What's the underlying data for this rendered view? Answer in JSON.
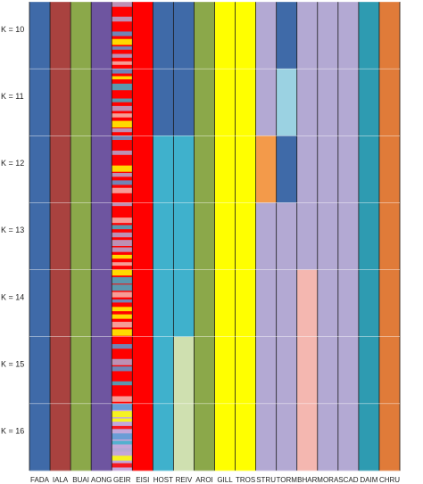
{
  "chart_data": {
    "type": "bar",
    "subtype": "stacked-admixture-structure-plot",
    "k_labels": [
      "K = 10",
      "K = 11",
      "K = 12",
      "K = 13",
      "K = 14",
      "K = 15",
      "K = 16"
    ],
    "populations": [
      "FADA",
      "IALA",
      "BUAI",
      "AONG",
      "GEIR",
      "EISI",
      "HOST",
      "REIV",
      "AROI",
      "GILL",
      "TROS",
      "STRU",
      "TORM",
      "BHAR",
      "MORA",
      "SCAD",
      "DAIM",
      "CHRU"
    ],
    "palette": {
      "dark_blue": "#3f6aa8",
      "maroon": "#a9423f",
      "olive_green": "#8ba84a",
      "purple": "#6e55a0",
      "red": "#ff0000",
      "cyan": "#3fb1cc",
      "yellow": "#ffff00",
      "lavender": "#b3a9d3",
      "orange": "#f39a4a",
      "teal": "#2e9bb1",
      "burnt_orange": "#e07b39",
      "light_blue": "#9bd2e2",
      "pink": "#f4b7b0",
      "pale_green": "#cfe0b0",
      "light_purple": "#c4a7d9",
      "sky_blue": "#5b9bd5"
    },
    "cluster_assignment": [
      [
        "dark_blue",
        "maroon",
        "olive_green",
        "purple",
        "red",
        "red",
        "dark_blue",
        "dark_blue",
        "olive_green",
        "yellow",
        "yellow",
        "lavender",
        "dark_blue",
        "lavender",
        "lavender",
        "lavender",
        "teal",
        "burnt_orange"
      ],
      [
        "dark_blue",
        "maroon",
        "olive_green",
        "purple",
        "red",
        "red",
        "dark_blue",
        "dark_blue",
        "olive_green",
        "yellow",
        "yellow",
        "lavender",
        "light_blue",
        "lavender",
        "lavender",
        "lavender",
        "teal",
        "burnt_orange"
      ],
      [
        "dark_blue",
        "maroon",
        "olive_green",
        "purple",
        "red",
        "red",
        "cyan",
        "cyan",
        "olive_green",
        "yellow",
        "yellow",
        "orange",
        "dark_blue",
        "lavender",
        "lavender",
        "lavender",
        "teal",
        "burnt_orange"
      ],
      [
        "dark_blue",
        "maroon",
        "olive_green",
        "purple",
        "red",
        "red",
        "cyan",
        "cyan",
        "olive_green",
        "yellow",
        "yellow",
        "lavender",
        "lavender",
        "lavender",
        "lavender",
        "lavender",
        "teal",
        "burnt_orange"
      ],
      [
        "dark_blue",
        "maroon",
        "olive_green",
        "purple",
        "red",
        "red",
        "cyan",
        "cyan",
        "olive_green",
        "yellow",
        "yellow",
        "lavender",
        "lavender",
        "pink",
        "lavender",
        "lavender",
        "teal",
        "burnt_orange"
      ],
      [
        "dark_blue",
        "maroon",
        "olive_green",
        "purple",
        "red",
        "red",
        "cyan",
        "pale_green",
        "olive_green",
        "yellow",
        "yellow",
        "lavender",
        "lavender",
        "pink",
        "lavender",
        "lavender",
        "teal",
        "burnt_orange"
      ],
      [
        "dark_blue",
        "maroon",
        "olive_green",
        "purple",
        "light_purple",
        "red",
        "cyan",
        "pale_green",
        "olive_green",
        "yellow",
        "yellow",
        "lavender",
        "lavender",
        "pink",
        "lavender",
        "lavender",
        "teal",
        "burnt_orange"
      ]
    ]
  }
}
